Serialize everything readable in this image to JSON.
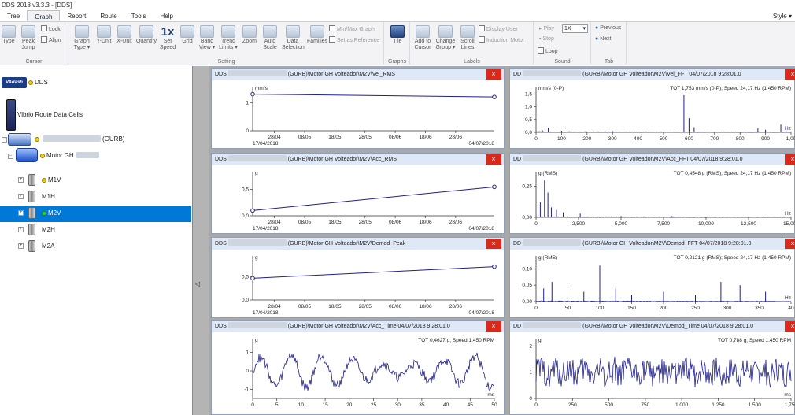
{
  "window": {
    "title": "DDS 2018 v3.3.3 - [DDS]"
  },
  "menu": {
    "tabs": [
      "Tree",
      "Graph",
      "Report",
      "Route",
      "Tools",
      "Help"
    ],
    "active": "Graph",
    "style": "Style ▾"
  },
  "ribbon": {
    "cursor": {
      "label": "Cursor",
      "type": "Type",
      "peak_jump": "Peak\nJump",
      "lock": "Lock",
      "align": "Align"
    },
    "setting": {
      "label": "Setting",
      "graph_type": "Graph\nType ▾",
      "y_unit": "Y-Unit",
      "x_unit": "X-Unit",
      "quantity": "Quantity",
      "speed_big": "1x",
      "set_speed": "Set\nSpeed",
      "grid": "Grid",
      "band_view": "Band\nView ▾",
      "trend_limits": "Trend\nLimits ▾",
      "zoom": "Zoom",
      "auto_scale": "Auto\nScale",
      "data_selection": "Data\nSelection",
      "families": "Families",
      "minmax_graph": "Min/Max Graph",
      "set_as_reference": "Set as Reference"
    },
    "graphs": {
      "label": "Graphs",
      "tile": "Tile"
    },
    "labels": {
      "label": "Labels",
      "add_to_cursor": "Add to\nCursor",
      "change_group": "Change\nGroup ▾",
      "scroll_lines": "Scroll\nLines",
      "display_user": "Display User",
      "induction_motor": "Induction Motor"
    },
    "sound": {
      "label": "Sound",
      "play": "Play",
      "stop": "Stop",
      "loop": "Loop",
      "speed_select": "1X"
    },
    "tab": {
      "label": "Tab",
      "previous": "Previous",
      "next": "Next"
    }
  },
  "tree": {
    "nodes": [
      {
        "label": "DDS",
        "logo": "VAdash"
      },
      {
        "label": "Vibrio Route Data Cells"
      },
      {
        "label": "(GURB)"
      },
      {
        "label": "Motor GH"
      },
      {
        "label": "M1V"
      },
      {
        "label": "M1H"
      },
      {
        "label": "M2V"
      },
      {
        "label": "M2H"
      },
      {
        "label": "M2A"
      }
    ],
    "selected": "M2V"
  },
  "panels": [
    {
      "title_prefix": "DDS",
      "title": "(GURB)\\Motor GH Volteador\\M2V\\Vel_RMS",
      "close": "×",
      "chart": 0
    },
    {
      "title_prefix": "DD",
      "title": "(GURB)\\Motor GH Volteador\\M2V\\Vel_FFT     04/07/2018 9:28:01.0",
      "close": "×",
      "chart": 1
    },
    {
      "title_prefix": "DDS",
      "title": "(GURB)\\Motor GH Volteador\\M2V\\Acc_RMS",
      "close": "×",
      "chart": 2
    },
    {
      "title_prefix": "DD",
      "title": "(GURB)\\Motor GH Volteador\\M2V\\Acc_FFT     04/07/2018 9:28:01.0",
      "close": "×",
      "chart": 3
    },
    {
      "title_prefix": "DDS",
      "title": "(GURB)\\Motor GH Volteador\\M2V\\Demod_Peak",
      "close": "×",
      "chart": 4
    },
    {
      "title_prefix": "DD",
      "title": "(GURB)\\Motor GH Volteador\\M2V\\Demod_FFT     04/07/2018 9:28:01.0",
      "close": "×",
      "chart": 5
    },
    {
      "title_prefix": "DDS",
      "title": "(GURB)\\Motor GH Volteador\\M2V\\Acc_Time     04/07/2018 9:28:01.0",
      "close": "×",
      "chart": 6
    },
    {
      "title_prefix": "DD",
      "title": "(GURB)\\Motor GH Volteador\\M2V\\Demod_Time     04/07/2018 9:28:01.0",
      "close": "×",
      "chart": 7
    }
  ],
  "colors": {
    "accent": "#0078d7",
    "trace": "#1f1f8f",
    "close": "#d9281c",
    "header": "#dfe8f6"
  },
  "chart_data": [
    {
      "type": "line",
      "ylabel": "mm/s",
      "yticks": [
        0,
        1
      ],
      "ylim": [
        0,
        1.4
      ],
      "xticks": [
        "28/04",
        "08/05",
        "18/05",
        "28/05",
        "08/06",
        "18/06",
        "28/06"
      ],
      "xrange_labels": [
        "17/04/2018",
        "04/07/2018"
      ],
      "series": [
        {
          "x": [
            0,
            1
          ],
          "y": [
            1.3,
            1.2
          ]
        }
      ]
    },
    {
      "type": "line",
      "ylabel": "mm/s (0-P)",
      "annotation": "TOT 1,753 mm/s (0-P); Speed 24,17 Hz (1.450 RPM)",
      "yticks": [
        "0,0",
        "0,5",
        "1,0",
        "1,5"
      ],
      "ylim": [
        0,
        1.6
      ],
      "xunit": "Hz",
      "xticks": [
        "0",
        "100",
        "200",
        "300",
        "400",
        "500",
        "600",
        "700",
        "800",
        "900",
        "1,00"
      ],
      "xlim": [
        0,
        1000
      ],
      "peaks": [
        [
          25,
          0.08
        ],
        [
          48,
          0.18
        ],
        [
          100,
          0.06
        ],
        [
          300,
          0.05
        ],
        [
          580,
          1.45
        ],
        [
          600,
          0.55
        ],
        [
          620,
          0.2
        ],
        [
          870,
          0.15
        ],
        [
          900,
          0.1
        ],
        [
          960,
          0.3
        ],
        [
          980,
          0.2
        ]
      ]
    },
    {
      "type": "line",
      "ylabel": "g",
      "yticks": [
        "0,0",
        "0,5"
      ],
      "ylim": [
        0,
        0.75
      ],
      "xticks": [
        "28/04",
        "08/05",
        "18/05",
        "28/05",
        "08/06",
        "18/06",
        "28/06"
      ],
      "xrange_labels": [
        "17/04/2018",
        "04/07/2018"
      ],
      "series": [
        {
          "x": [
            0,
            1
          ],
          "y": [
            0.1,
            0.55
          ]
        }
      ]
    },
    {
      "type": "line",
      "ylabel": "g (RMS)",
      "annotation": "TOT 0,4548 g (RMS); Speed 24,17 Hz (1.450 RPM)",
      "yticks": [
        "0,00",
        "0,25"
      ],
      "ylim": [
        0,
        0.33
      ],
      "xunit": "Hz",
      "xticks": [
        "0",
        "2,500",
        "5,000",
        "7,500",
        "10,000",
        "12,500",
        "15,000"
      ],
      "xlim": [
        0,
        15000
      ],
      "peaks": [
        [
          250,
          0.12
        ],
        [
          500,
          0.3
        ],
        [
          700,
          0.2
        ],
        [
          900,
          0.08
        ],
        [
          1200,
          0.06
        ],
        [
          1600,
          0.04
        ],
        [
          2600,
          0.03
        ],
        [
          5000,
          0.01
        ],
        [
          8000,
          0.01
        ]
      ]
    },
    {
      "type": "line",
      "ylabel": "g",
      "yticks": [
        "0,0",
        "0,5"
      ],
      "ylim": [
        0,
        0.85
      ],
      "xticks": [
        "28/04",
        "08/05",
        "18/05",
        "28/05",
        "08/06",
        "18/06",
        "28/06"
      ],
      "xrange_labels": [
        "17/04/2018",
        "04/07/2018"
      ],
      "series": [
        {
          "x": [
            0,
            1
          ],
          "y": [
            0.47,
            0.72
          ]
        }
      ]
    },
    {
      "type": "line",
      "ylabel": "g (RMS)",
      "annotation": "TOT 0,2121 g (RMS); Speed 24,17 Hz (1.450 RPM)",
      "yticks": [
        "0,00",
        "0,05",
        "0,10"
      ],
      "ylim": [
        0,
        0.125
      ],
      "xunit": "Hz",
      "xticks": [
        "0",
        "50",
        "100",
        "150",
        "200",
        "250",
        "300",
        "350",
        "40"
      ],
      "xlim": [
        0,
        400
      ],
      "peaks": [
        [
          12,
          0.04
        ],
        [
          25,
          0.06
        ],
        [
          50,
          0.05
        ],
        [
          75,
          0.03
        ],
        [
          100,
          0.11
        ],
        [
          125,
          0.04
        ],
        [
          150,
          0.02
        ],
        [
          200,
          0.03
        ],
        [
          250,
          0.02
        ],
        [
          290,
          0.06
        ],
        [
          320,
          0.05
        ],
        [
          360,
          0.03
        ]
      ]
    },
    {
      "type": "line",
      "ylabel": "g",
      "annotation": "TOT 0,4627 g; Speed 1.450 RPM",
      "yticks": [
        "-1",
        "0",
        "1"
      ],
      "ylim": [
        -1.5,
        1.5
      ],
      "xunit": "ms",
      "xticks": [
        "0",
        "5",
        "10",
        "15",
        "20",
        "25",
        "30",
        "35",
        "40",
        "45",
        "50"
      ],
      "xlim": [
        0,
        50
      ]
    },
    {
      "type": "line",
      "ylabel": "g",
      "annotation": "TOT 0,788 g; Speed 1.450 RPM",
      "yticks": [
        "0",
        "1",
        "2"
      ],
      "ylim": [
        0,
        2.1
      ],
      "xunit": "ms",
      "xticks": [
        "0",
        "250",
        "500",
        "750",
        "1,000",
        "1,250",
        "1,500",
        "1,750"
      ],
      "xlim": [
        0,
        1950
      ]
    }
  ]
}
